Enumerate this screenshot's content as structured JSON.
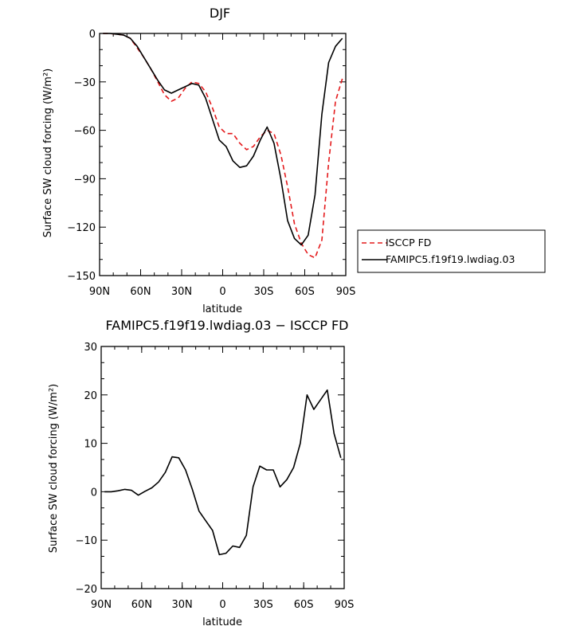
{
  "chart_data": [
    {
      "type": "line",
      "title": "DJF",
      "xlabel": "latitude",
      "ylabel": "Surface SW cloud forcing (W/m²)",
      "x_ticks": [
        "90N",
        "60N",
        "30N",
        "0",
        "30S",
        "60S",
        "90S"
      ],
      "y_ticks": [
        "0",
        "−30",
        "−60",
        "−90",
        "−120",
        "−150"
      ],
      "xlim": [
        90,
        -90
      ],
      "ylim": [
        -150,
        0
      ],
      "legend_position": "right",
      "x": [
        87.5,
        82.5,
        77.5,
        72.5,
        67.5,
        62.5,
        57.5,
        52.5,
        47.5,
        42.5,
        37.5,
        32.5,
        27.5,
        22.5,
        17.5,
        12.5,
        7.5,
        2.5,
        -2.5,
        -7.5,
        -12.5,
        -17.5,
        -22.5,
        -27.5,
        -32.5,
        -37.5,
        -42.5,
        -47.5,
        -52.5,
        -57.5,
        -62.5,
        -67.5,
        -72.5,
        -77.5,
        -82.5,
        -87.5
      ],
      "series": [
        {
          "name": "ISCCP FD",
          "color": "#e41a1c",
          "dash": "dashed",
          "values": [
            0,
            0,
            -0.5,
            -1,
            -3,
            -9,
            -15,
            -22,
            -30,
            -38,
            -42,
            -40,
            -34,
            -30,
            -31,
            -36,
            -46,
            -58,
            -62,
            -62,
            -68,
            -72,
            -70,
            -64,
            -60,
            -62,
            -75,
            -95,
            -118,
            -130,
            -137,
            -139,
            -128,
            -80,
            -42,
            -28
          ]
        },
        {
          "name": "FAMIPC5.f19f19.lwdiag.03",
          "color": "#000000",
          "dash": "solid",
          "values": [
            0,
            0,
            -0.5,
            -1,
            -3,
            -8,
            -15,
            -22,
            -29,
            -35,
            -37,
            -35,
            -33,
            -31,
            -32,
            -40,
            -53,
            -66,
            -70,
            -79,
            -83,
            -82,
            -76,
            -66,
            -58,
            -68,
            -90,
            -116,
            -127,
            -131,
            -125,
            -100,
            -50,
            -18,
            -8,
            -3
          ]
        }
      ]
    },
    {
      "type": "line",
      "title": "FAMIPC5.f19f19.lwdiag.03 − ISCCP FD",
      "xlabel": "latitude",
      "ylabel": "Surface SW cloud forcing (W/m²)",
      "x_ticks": [
        "90N",
        "60N",
        "30N",
        "0",
        "30S",
        "60S",
        "90S"
      ],
      "y_ticks": [
        "30",
        "20",
        "10",
        "0",
        "−10",
        "−20"
      ],
      "xlim": [
        90,
        -90
      ],
      "ylim": [
        -20,
        30
      ],
      "x": [
        87.5,
        82.5,
        77.5,
        72.5,
        67.5,
        62.5,
        57.5,
        52.5,
        47.5,
        42.5,
        37.5,
        32.5,
        27.5,
        22.5,
        17.5,
        12.5,
        7.5,
        2.5,
        -2.5,
        -7.5,
        -12.5,
        -17.5,
        -22.5,
        -27.5,
        -32.5,
        -37.5,
        -42.5,
        -47.5,
        -52.5,
        -57.5,
        -62.5,
        -67.5,
        -72.5,
        -77.5,
        -82.5,
        -87.5
      ],
      "series": [
        {
          "color": "#000000",
          "values": [
            0,
            0,
            0.2,
            0.5,
            0.3,
            -0.7,
            0.1,
            0.8,
            2.0,
            4.0,
            7.2,
            7.0,
            4.5,
            0.5,
            -4.0,
            -6.0,
            -8.0,
            -13.0,
            -12.7,
            -11.2,
            -11.5,
            -9.0,
            1.0,
            5.3,
            4.5,
            4.5,
            1.0,
            2.5,
            5.0,
            10.0,
            20.0,
            17.0,
            19.0,
            21.0,
            12.0,
            7.0
          ]
        }
      ]
    }
  ]
}
